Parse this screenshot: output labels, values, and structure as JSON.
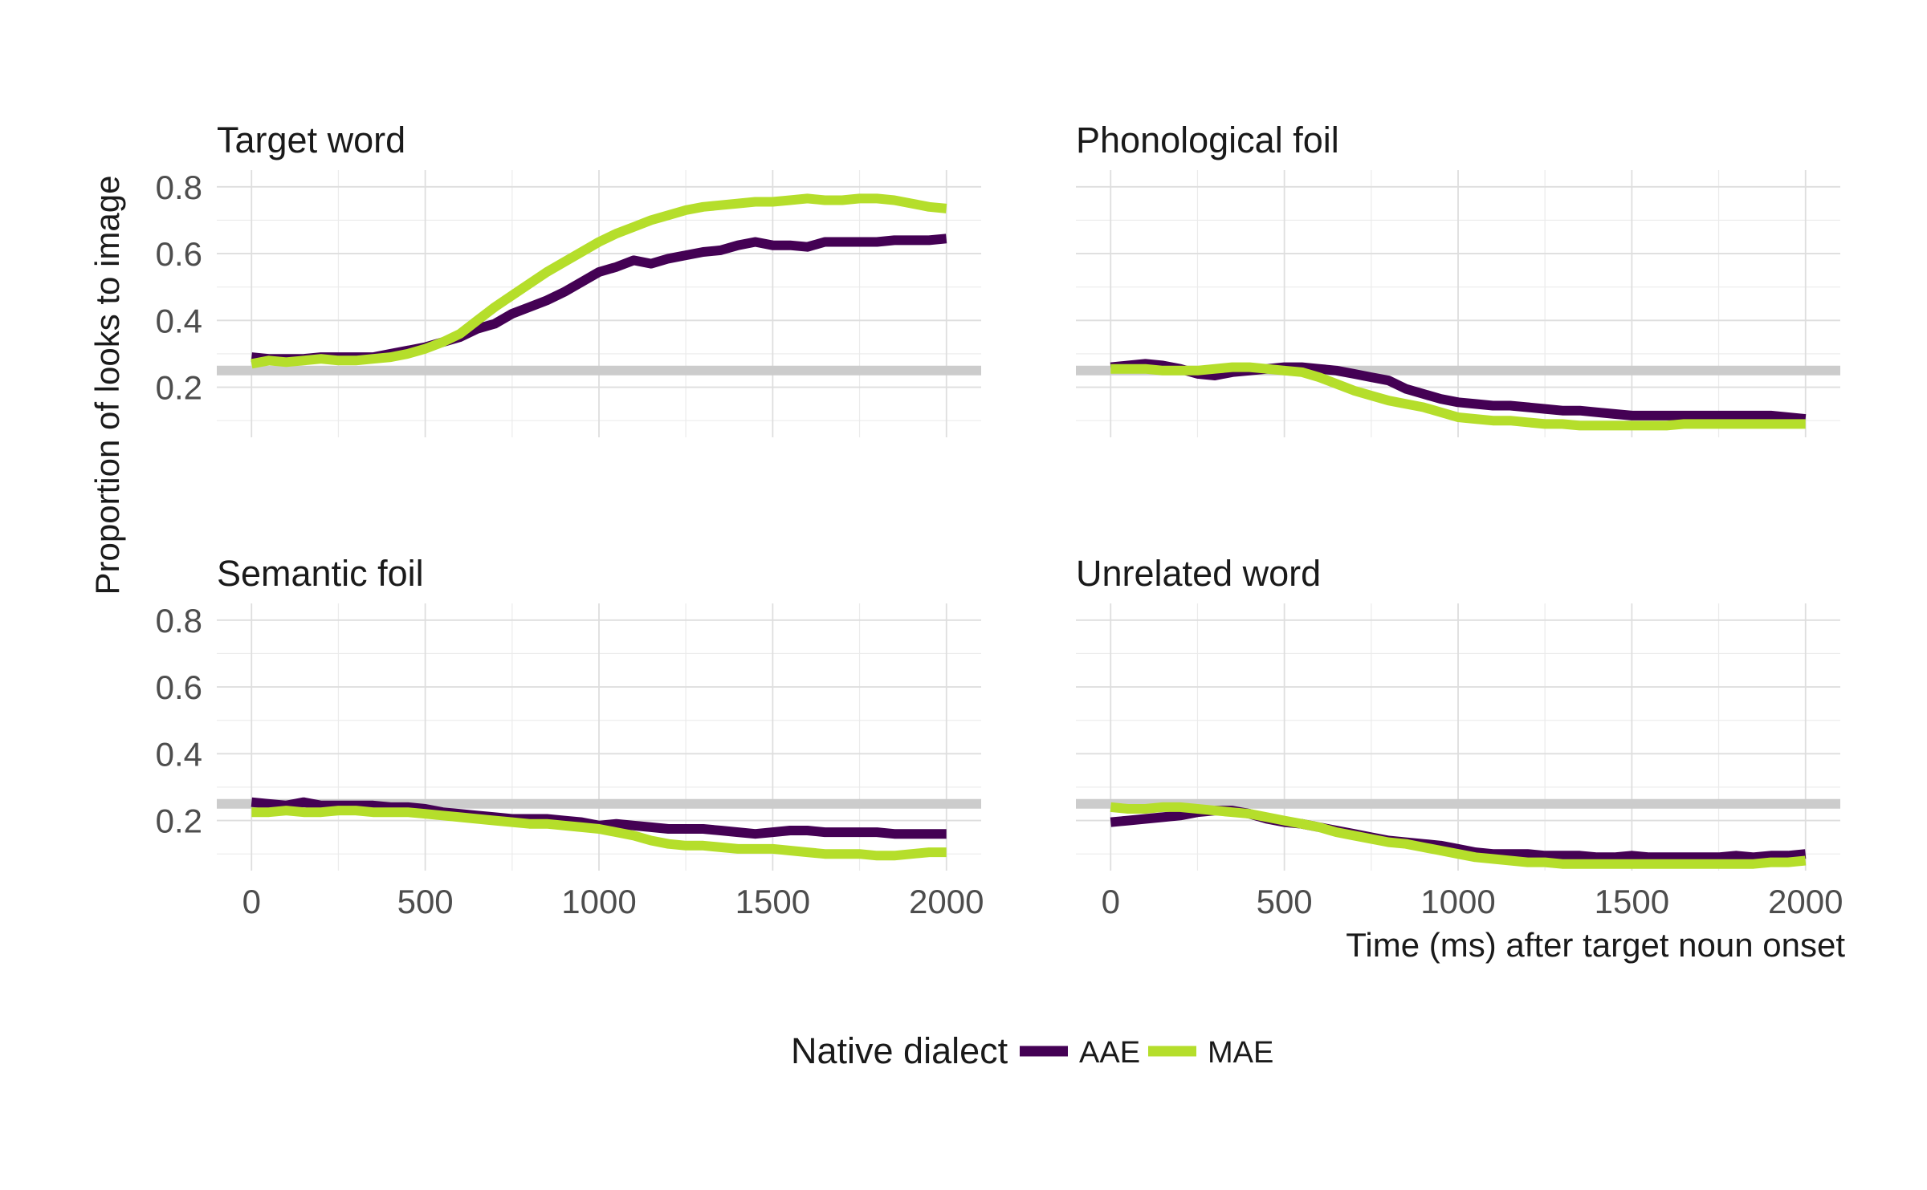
{
  "chart_data": {
    "type": "line",
    "facets": true,
    "ylabel": "Proportion of looks to image",
    "xlabel": "Time (ms) after target noun onset",
    "x_ticks": [
      0,
      500,
      1000,
      1500,
      2000
    ],
    "y_ticks": [
      0.2,
      0.4,
      0.6,
      0.8
    ],
    "x_range": [
      -100,
      2100
    ],
    "y_range": [
      0.05,
      0.85
    ],
    "reference_line": 0.25,
    "grid": true,
    "legend": {
      "title": "Native dialect",
      "position": "bottom",
      "entries": [
        {
          "name": "AAE",
          "color": "#440154"
        },
        {
          "name": "MAE",
          "color": "#b5de2b"
        }
      ]
    },
    "reference_color": "#cccccc",
    "x": [
      0,
      50,
      100,
      150,
      200,
      250,
      300,
      350,
      400,
      450,
      500,
      550,
      600,
      650,
      700,
      750,
      800,
      850,
      900,
      950,
      1000,
      1050,
      1100,
      1150,
      1200,
      1250,
      1300,
      1350,
      1400,
      1450,
      1500,
      1550,
      1600,
      1650,
      1700,
      1750,
      1800,
      1850,
      1900,
      1950,
      2000
    ],
    "panels": [
      {
        "title": "Target word",
        "series": [
          {
            "name": "AAE",
            "values": [
              0.29,
              0.285,
              0.285,
              0.285,
              0.29,
              0.29,
              0.29,
              0.29,
              0.3,
              0.31,
              0.32,
              0.335,
              0.35,
              0.375,
              0.39,
              0.42,
              0.44,
              0.46,
              0.485,
              0.515,
              0.545,
              0.56,
              0.58,
              0.57,
              0.585,
              0.595,
              0.605,
              0.61,
              0.625,
              0.635,
              0.625,
              0.625,
              0.62,
              0.635,
              0.635,
              0.635,
              0.635,
              0.64,
              0.64,
              0.64,
              0.645
            ]
          },
          {
            "name": "MAE",
            "values": [
              0.27,
              0.28,
              0.275,
              0.28,
              0.285,
              0.28,
              0.28,
              0.285,
              0.29,
              0.3,
              0.315,
              0.335,
              0.36,
              0.4,
              0.44,
              0.475,
              0.51,
              0.545,
              0.575,
              0.605,
              0.635,
              0.66,
              0.68,
              0.7,
              0.715,
              0.73,
              0.74,
              0.745,
              0.75,
              0.755,
              0.755,
              0.76,
              0.765,
              0.76,
              0.76,
              0.765,
              0.765,
              0.76,
              0.75,
              0.74,
              0.735
            ]
          }
        ]
      },
      {
        "title": "Phonological foil",
        "series": [
          {
            "name": "AAE",
            "values": [
              0.26,
              0.265,
              0.27,
              0.265,
              0.255,
              0.24,
              0.235,
              0.245,
              0.25,
              0.255,
              0.26,
              0.26,
              0.255,
              0.25,
              0.24,
              0.23,
              0.22,
              0.195,
              0.18,
              0.165,
              0.155,
              0.15,
              0.145,
              0.145,
              0.14,
              0.135,
              0.13,
              0.13,
              0.125,
              0.12,
              0.115,
              0.115,
              0.115,
              0.115,
              0.115,
              0.115,
              0.115,
              0.115,
              0.115,
              0.11,
              0.105
            ]
          },
          {
            "name": "MAE",
            "values": [
              0.255,
              0.255,
              0.255,
              0.25,
              0.25,
              0.25,
              0.255,
              0.26,
              0.26,
              0.255,
              0.25,
              0.245,
              0.23,
              0.21,
              0.19,
              0.175,
              0.16,
              0.15,
              0.14,
              0.125,
              0.11,
              0.105,
              0.1,
              0.1,
              0.095,
              0.09,
              0.09,
              0.085,
              0.085,
              0.085,
              0.085,
              0.085,
              0.085,
              0.09,
              0.09,
              0.09,
              0.09,
              0.09,
              0.09,
              0.09,
              0.09
            ]
          }
        ]
      },
      {
        "title": "Semantic foil",
        "series": [
          {
            "name": "AAE",
            "values": [
              0.255,
              0.25,
              0.245,
              0.255,
              0.245,
              0.245,
              0.245,
              0.245,
              0.24,
              0.24,
              0.235,
              0.225,
              0.22,
              0.215,
              0.21,
              0.205,
              0.205,
              0.205,
              0.2,
              0.195,
              0.185,
              0.19,
              0.185,
              0.18,
              0.175,
              0.175,
              0.175,
              0.17,
              0.165,
              0.16,
              0.165,
              0.17,
              0.17,
              0.165,
              0.165,
              0.165,
              0.165,
              0.16,
              0.16,
              0.16,
              0.16
            ]
          },
          {
            "name": "MAE",
            "values": [
              0.225,
              0.225,
              0.23,
              0.225,
              0.225,
              0.23,
              0.23,
              0.225,
              0.225,
              0.225,
              0.22,
              0.215,
              0.21,
              0.205,
              0.2,
              0.195,
              0.19,
              0.19,
              0.185,
              0.18,
              0.175,
              0.165,
              0.155,
              0.14,
              0.13,
              0.125,
              0.125,
              0.12,
              0.115,
              0.115,
              0.115,
              0.11,
              0.105,
              0.1,
              0.1,
              0.1,
              0.095,
              0.095,
              0.1,
              0.105,
              0.105
            ]
          }
        ]
      },
      {
        "title": "Unrelated word",
        "series": [
          {
            "name": "AAE",
            "values": [
              0.195,
              0.2,
              0.205,
              0.21,
              0.215,
              0.225,
              0.23,
              0.23,
              0.22,
              0.205,
              0.195,
              0.19,
              0.18,
              0.17,
              0.16,
              0.15,
              0.14,
              0.135,
              0.13,
              0.125,
              0.115,
              0.105,
              0.1,
              0.1,
              0.1,
              0.095,
              0.095,
              0.095,
              0.09,
              0.09,
              0.095,
              0.09,
              0.09,
              0.09,
              0.09,
              0.09,
              0.095,
              0.09,
              0.095,
              0.095,
              0.1
            ]
          },
          {
            "name": "MAE",
            "values": [
              0.24,
              0.235,
              0.235,
              0.24,
              0.24,
              0.235,
              0.23,
              0.225,
              0.22,
              0.21,
              0.2,
              0.19,
              0.18,
              0.165,
              0.155,
              0.145,
              0.135,
              0.13,
              0.12,
              0.11,
              0.1,
              0.09,
              0.085,
              0.08,
              0.075,
              0.075,
              0.07,
              0.07,
              0.07,
              0.07,
              0.07,
              0.07,
              0.07,
              0.07,
              0.07,
              0.07,
              0.07,
              0.07,
              0.075,
              0.075,
              0.08
            ]
          }
        ]
      }
    ]
  }
}
